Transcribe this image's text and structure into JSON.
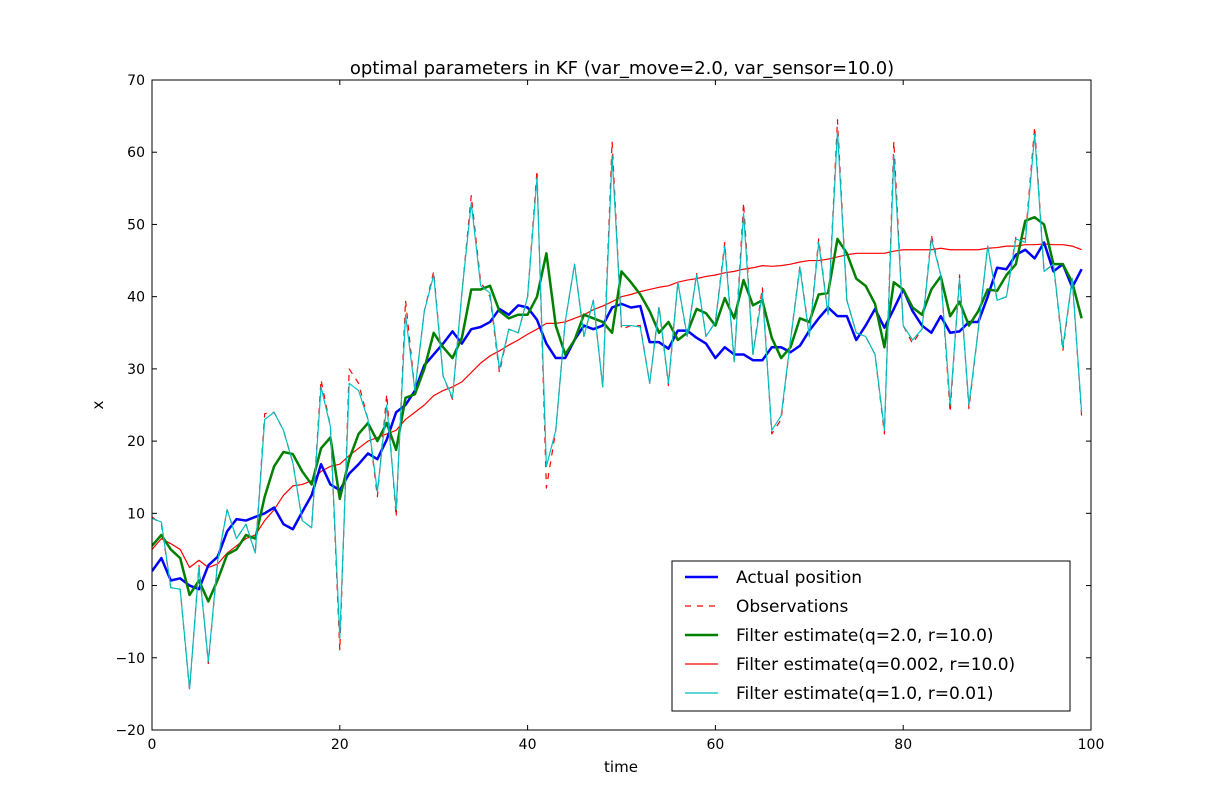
{
  "chart_data": {
    "type": "line",
    "title": "optimal parameters in KF (var_move=2.0, var_sensor=10.0)",
    "xlabel": "time",
    "ylabel": "x",
    "xlim": [
      0,
      100
    ],
    "ylim": [
      -20,
      70
    ],
    "xticks": [
      0,
      20,
      40,
      60,
      80,
      100
    ],
    "yticks": [
      -20,
      -10,
      0,
      10,
      20,
      30,
      40,
      50,
      60,
      70
    ],
    "xtick_labels": [
      "0",
      "20",
      "40",
      "60",
      "80",
      "100"
    ],
    "ytick_labels": [
      "−20",
      "−10",
      "0",
      "10",
      "20",
      "30",
      "40",
      "50",
      "60",
      "70"
    ],
    "grid": false,
    "legend_position": "lower-right",
    "x": [
      0,
      1,
      2,
      3,
      4,
      5,
      6,
      7,
      8,
      9,
      10,
      11,
      12,
      13,
      14,
      15,
      16,
      17,
      18,
      19,
      20,
      21,
      22,
      23,
      24,
      25,
      26,
      27,
      28,
      29,
      30,
      31,
      32,
      33,
      34,
      35,
      36,
      37,
      38,
      39,
      40,
      41,
      42,
      43,
      44,
      45,
      46,
      47,
      48,
      49,
      50,
      51,
      52,
      53,
      54,
      55,
      56,
      57,
      58,
      59,
      60,
      61,
      62,
      63,
      64,
      65,
      66,
      67,
      68,
      69,
      70,
      71,
      72,
      73,
      74,
      75,
      76,
      77,
      78,
      79,
      80,
      81,
      82,
      83,
      84,
      85,
      86,
      87,
      88,
      89,
      90,
      91,
      92,
      93,
      94,
      95,
      96,
      97,
      98,
      99
    ],
    "series": [
      {
        "name": "Actual position",
        "color": "#0000ff",
        "style": "solid-thick",
        "values": [
          2.0,
          3.8,
          0.7,
          1.0,
          0.0,
          -0.5,
          2.8,
          4.0,
          7.5,
          9.2,
          9.0,
          9.5,
          10.0,
          10.8,
          8.5,
          7.8,
          10.2,
          12.5,
          16.8,
          14.0,
          13.2,
          15.5,
          16.8,
          18.3,
          17.5,
          20.2,
          24.0,
          25.0,
          27.0,
          30.5,
          32.0,
          33.5,
          35.2,
          33.5,
          35.5,
          35.8,
          36.5,
          38.3,
          37.5,
          38.8,
          38.5,
          36.8,
          33.5,
          31.5,
          31.5,
          34.0,
          36.0,
          35.5,
          36.0,
          38.5,
          39.0,
          38.5,
          38.7,
          33.7,
          33.7,
          32.8,
          35.3,
          35.3,
          34.3,
          33.5,
          31.5,
          33.0,
          32.0,
          32.0,
          31.2,
          31.2,
          33.0,
          33.0,
          32.3,
          33.2,
          35.3,
          37.0,
          38.5,
          37.3,
          37.3,
          34.0,
          36.0,
          38.3,
          35.7,
          38.3,
          41.0,
          38.0,
          36.0,
          35.0,
          37.3,
          35.0,
          35.2,
          36.5,
          36.5,
          40.0,
          44.0,
          43.8,
          45.8,
          46.5,
          45.3,
          47.5,
          43.5,
          44.5,
          41.3,
          43.8
        ]
      },
      {
        "name": "Observations",
        "color": "#ff0000",
        "style": "dashed",
        "values": [
          9.5,
          8.5,
          -0.3,
          -0.5,
          -14.5,
          2.8,
          -10.8,
          3.5,
          10.5,
          6.5,
          8.5,
          4.5,
          23.8,
          24.0,
          21.5,
          17.0,
          9.0,
          8.0,
          28.5,
          22.0,
          -9.0,
          30.0,
          28.0,
          23.0,
          12.3,
          26.5,
          9.5,
          39.5,
          27.0,
          38.0,
          43.5,
          29.0,
          25.8,
          40.5,
          54.0,
          42.0,
          40.0,
          29.5,
          35.5,
          35.0,
          40.0,
          57.5,
          13.5,
          21.5,
          36.5,
          44.5,
          34.5,
          39.5,
          27.5,
          61.5,
          35.5,
          36.0,
          36.0,
          28.0,
          38.7,
          27.7,
          42.0,
          34.3,
          43.2,
          34.5,
          36.5,
          47.5,
          31.0,
          53.0,
          32.0,
          41.3,
          21.0,
          23.0,
          34.0,
          44.3,
          34.7,
          48.0,
          37.5,
          64.5,
          39.5,
          35.0,
          34.5,
          32.0,
          21.0,
          61.5,
          36.0,
          33.5,
          35.5,
          48.5,
          43.0,
          24.0,
          43.0,
          24.5,
          35.5,
          47.0,
          39.5,
          40.0,
          48.3,
          48.0,
          63.5,
          43.5,
          44.5,
          32.5,
          42.5,
          23.5
        ]
      },
      {
        "name": "Filter estimate(q=2.0, r=10.0)",
        "color": "#008000",
        "style": "solid-thick",
        "values": [
          5.5,
          7.0,
          5.0,
          3.8,
          -1.3,
          0.7,
          -2.2,
          0.8,
          4.3,
          5.0,
          7.0,
          6.5,
          12.3,
          16.5,
          18.5,
          18.2,
          15.8,
          14.0,
          19.0,
          20.5,
          12.0,
          17.5,
          21.0,
          22.5,
          20.0,
          22.5,
          18.8,
          26.0,
          26.5,
          30.0,
          35.0,
          33.0,
          31.5,
          34.3,
          41.0,
          41.0,
          41.5,
          38.0,
          37.0,
          37.5,
          37.5,
          40.0,
          46.0,
          36.0,
          32.0,
          34.0,
          37.5,
          37.0,
          36.5,
          35.0,
          43.5,
          42.0,
          40.3,
          38.0,
          35.0,
          36.5,
          34.0,
          35.0,
          38.3,
          37.7,
          36.0,
          39.8,
          37.0,
          42.3,
          38.8,
          39.5,
          34.3,
          31.5,
          33.0,
          37.0,
          36.5,
          40.3,
          40.5,
          48.0,
          46.0,
          42.5,
          41.5,
          39.0,
          33.0,
          42.0,
          41.0,
          38.5,
          37.5,
          41.0,
          42.8,
          37.3,
          39.3,
          36.0,
          38.0,
          41.0,
          40.8,
          43.0,
          44.5,
          50.5,
          51.0,
          50.0,
          44.5,
          44.5,
          42.0,
          37.0
        ]
      },
      {
        "name": "Filter estimate(q=0.002, r=10.0)",
        "color": "#ff0000",
        "style": "solid",
        "values": [
          5.0,
          6.5,
          5.8,
          5.0,
          2.5,
          3.5,
          2.5,
          3.0,
          4.5,
          5.5,
          6.5,
          7.0,
          9.0,
          10.5,
          12.5,
          13.8,
          14.0,
          14.5,
          15.8,
          16.5,
          16.8,
          18.0,
          19.0,
          20.0,
          20.5,
          21.0,
          21.5,
          23.0,
          24.0,
          25.0,
          26.3,
          27.0,
          27.5,
          28.2,
          29.5,
          30.8,
          31.8,
          32.5,
          33.3,
          34.0,
          34.8,
          35.5,
          36.3,
          36.3,
          36.5,
          37.0,
          37.5,
          38.2,
          38.7,
          39.3,
          40.0,
          40.3,
          40.7,
          41.0,
          41.3,
          41.5,
          42.0,
          42.3,
          42.5,
          42.8,
          43.0,
          43.3,
          43.5,
          43.8,
          44.0,
          44.3,
          44.2,
          44.3,
          44.5,
          44.8,
          45.0,
          45.0,
          45.2,
          45.5,
          45.8,
          46.0,
          46.0,
          46.0,
          46.0,
          46.3,
          46.5,
          46.5,
          46.5,
          46.5,
          46.7,
          46.5,
          46.5,
          46.5,
          46.5,
          46.7,
          46.8,
          47.0,
          47.0,
          47.2,
          47.2,
          47.3,
          47.2,
          47.2,
          47.0,
          46.5
        ]
      },
      {
        "name": "Filter estimate(q=1.0, r=0.01)",
        "color": "#00bfbf",
        "style": "solid",
        "values": [
          9.3,
          8.8,
          -0.3,
          -0.5,
          -14.3,
          2.5,
          -10.5,
          3.5,
          10.5,
          6.5,
          8.5,
          4.5,
          23.0,
          24.0,
          21.5,
          17.0,
          9.0,
          8.0,
          27.5,
          22.0,
          -7.3,
          28.0,
          27.0,
          23.0,
          13.0,
          25.0,
          10.5,
          37.5,
          27.0,
          38.0,
          43.0,
          29.0,
          26.0,
          40.5,
          53.0,
          41.5,
          40.5,
          30.0,
          35.5,
          35.0,
          40.0,
          56.5,
          16.5,
          21.5,
          36.5,
          44.5,
          34.5,
          39.5,
          27.5,
          59.5,
          36.0,
          36.0,
          35.8,
          28.0,
          38.5,
          28.0,
          42.0,
          34.5,
          43.0,
          34.5,
          36.5,
          47.0,
          31.0,
          51.5,
          32.0,
          40.5,
          21.5,
          23.5,
          34.0,
          44.0,
          34.5,
          47.5,
          37.5,
          63.0,
          39.5,
          35.0,
          34.5,
          32.0,
          21.5,
          59.5,
          36.0,
          34.0,
          35.5,
          48.0,
          43.0,
          25.0,
          42.5,
          25.0,
          35.5,
          47.0,
          39.5,
          40.0,
          48.0,
          47.5,
          62.5,
          43.5,
          44.5,
          33.0,
          42.5,
          24.0
        ]
      }
    ]
  }
}
